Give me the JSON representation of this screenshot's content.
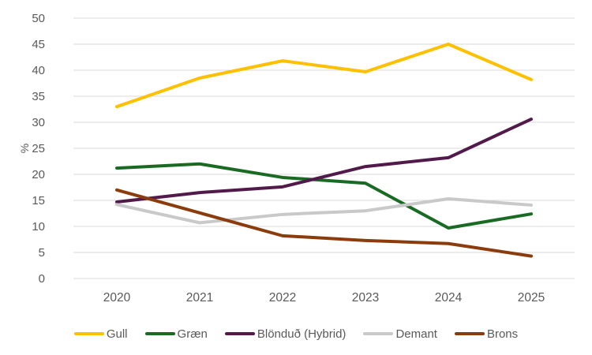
{
  "chart_data": {
    "type": "line",
    "title": "",
    "xlabel": "",
    "ylabel": "%",
    "categories": [
      "2020",
      "2021",
      "2022",
      "2023",
      "2024",
      "2025"
    ],
    "series": [
      {
        "name": "Gull",
        "color": "#FFC000",
        "values": [
          33,
          38.5,
          41.8,
          39.7,
          45,
          38.2
        ]
      },
      {
        "name": "Græn",
        "color": "#196B24",
        "values": [
          21.2,
          22,
          19.4,
          18.3,
          9.7,
          12.4
        ]
      },
      {
        "name": "Blönduð (Hybrid)",
        "color": "#511A4B",
        "values": [
          14.7,
          16.5,
          17.6,
          21.5,
          23.2,
          30.6
        ]
      },
      {
        "name": "Demant",
        "color": "#C9C9C9",
        "values": [
          14.2,
          10.7,
          12.3,
          13,
          15.3,
          14.1
        ]
      },
      {
        "name": "Brons",
        "color": "#8C3C0C",
        "values": [
          17,
          12.6,
          8.2,
          7.3,
          6.7,
          4.3
        ]
      }
    ],
    "ylim": [
      0,
      50
    ],
    "ytick_step": 5,
    "grid": true,
    "legend_position": "bottom",
    "axis_text_color": "#595959",
    "gridline_color": "#D9D9D9",
    "line_width": 4
  }
}
